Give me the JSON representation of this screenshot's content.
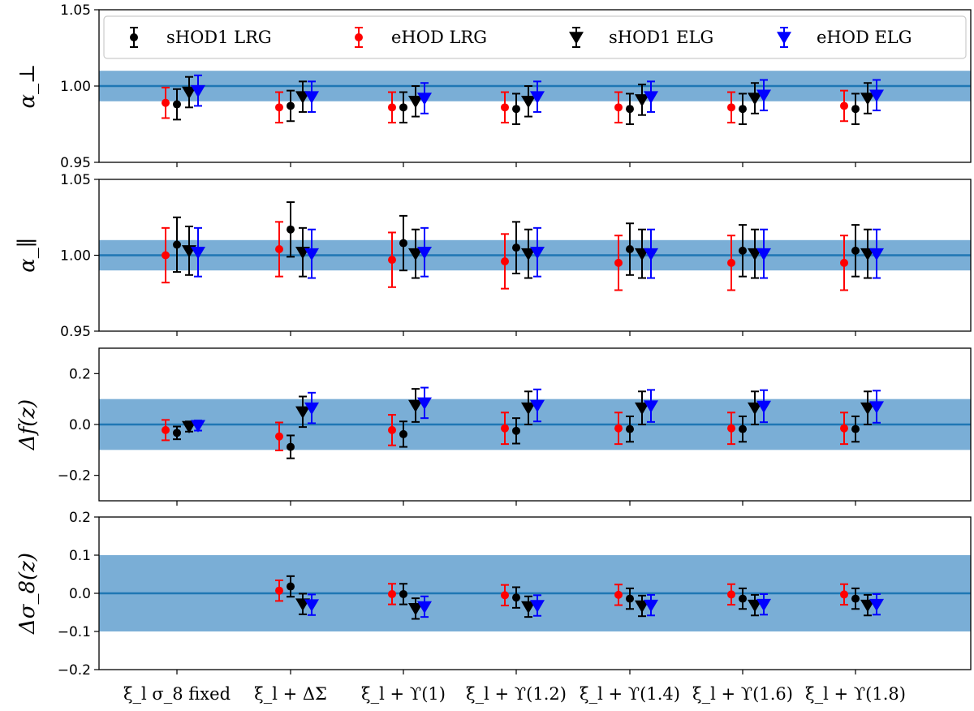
{
  "chart_data": {
    "type": "scatter",
    "categories": [
      "ξ_l  σ_8 fixed",
      "ξ_l + ΔΣ",
      "ξ_l + ϒ(1)",
      "ξ_l + ϒ(1.2)",
      "ξ_l + ϒ(1.4)",
      "ξ_l + ϒ(1.6)",
      "ξ_l + ϒ(1.8)"
    ],
    "legend": {
      "placement": "top",
      "entries": [
        {
          "label": "sHOD1 LRG",
          "color": "#000000",
          "marker": "circle"
        },
        {
          "label": "eHOD LRG",
          "color": "#ff0000",
          "marker": "circle"
        },
        {
          "label": "sHOD1 ELG",
          "color": "#000000",
          "marker": "triangle-down"
        },
        {
          "label": "eHOD ELG",
          "color": "#0000ff",
          "marker": "triangle-down"
        }
      ]
    },
    "colors": {
      "band": "#7aaed6",
      "reference_line": "#1f77b4"
    },
    "grid": false,
    "panels": [
      {
        "ylabel": "α_⊥",
        "ylim": [
          0.95,
          1.05
        ],
        "yticks": [
          "0.95",
          "1.00",
          "1.05"
        ],
        "ytick_values": [
          0.95,
          1.0,
          1.05
        ],
        "reference": 1.0,
        "band": [
          0.99,
          1.01
        ],
        "series": [
          {
            "name": "eHOD LRG",
            "values": [
              0.989,
              0.986,
              0.986,
              0.986,
              0.986,
              0.986,
              0.987
            ],
            "errors": [
              0.01,
              0.01,
              0.01,
              0.01,
              0.01,
              0.01,
              0.01
            ]
          },
          {
            "name": "sHOD1 LRG",
            "values": [
              0.988,
              0.987,
              0.986,
              0.985,
              0.985,
              0.985,
              0.985
            ],
            "errors": [
              0.01,
              0.01,
              0.01,
              0.01,
              0.01,
              0.01,
              0.01
            ]
          },
          {
            "name": "sHOD1 ELG",
            "values": [
              0.996,
              0.993,
              0.99,
              0.99,
              0.991,
              0.992,
              0.992
            ],
            "errors": [
              0.01,
              0.01,
              0.01,
              0.01,
              0.01,
              0.01,
              0.01
            ]
          },
          {
            "name": "eHOD ELG",
            "values": [
              0.997,
              0.993,
              0.992,
              0.993,
              0.993,
              0.994,
              0.994
            ],
            "errors": [
              0.01,
              0.01,
              0.01,
              0.01,
              0.01,
              0.01,
              0.01
            ]
          }
        ]
      },
      {
        "ylabel": "α_∥",
        "ylim": [
          0.95,
          1.05
        ],
        "yticks": [
          "0.95",
          "1.00",
          "1.05"
        ],
        "ytick_values": [
          0.95,
          1.0,
          1.05
        ],
        "reference": 1.0,
        "band": [
          0.99,
          1.01
        ],
        "series": [
          {
            "name": "eHOD LRG",
            "values": [
              1.0,
              1.004,
              0.997,
              0.996,
              0.995,
              0.995,
              0.995
            ],
            "errors": [
              0.018,
              0.018,
              0.018,
              0.018,
              0.018,
              0.018,
              0.018
            ]
          },
          {
            "name": "sHOD1 LRG",
            "values": [
              1.007,
              1.017,
              1.008,
              1.005,
              1.004,
              1.003,
              1.003
            ],
            "errors": [
              0.018,
              0.018,
              0.018,
              0.017,
              0.017,
              0.017,
              0.017
            ]
          },
          {
            "name": "sHOD1 ELG",
            "values": [
              1.003,
              1.002,
              1.001,
              1.001,
              1.001,
              1.001,
              1.001
            ],
            "errors": [
              0.016,
              0.016,
              0.016,
              0.016,
              0.016,
              0.016,
              0.016
            ]
          },
          {
            "name": "eHOD ELG",
            "values": [
              1.002,
              1.001,
              1.002,
              1.002,
              1.001,
              1.001,
              1.001
            ],
            "errors": [
              0.016,
              0.016,
              0.016,
              0.016,
              0.016,
              0.016,
              0.016
            ]
          }
        ]
      },
      {
        "ylabel": "Δf(z)",
        "ylim": [
          -0.3,
          0.3
        ],
        "yticks": [
          "−0.2",
          "0.0",
          "0.2"
        ],
        "ytick_values": [
          -0.2,
          0.0,
          0.2
        ],
        "reference": 0.0,
        "band": [
          -0.1,
          0.1
        ],
        "series": [
          {
            "name": "eHOD LRG",
            "values": [
              -0.022,
              -0.047,
              -0.022,
              -0.015,
              -0.015,
              -0.015,
              -0.015
            ],
            "errors": [
              0.04,
              0.055,
              0.06,
              0.062,
              0.062,
              0.062,
              0.062
            ]
          },
          {
            "name": "sHOD1 LRG",
            "values": [
              -0.033,
              -0.088,
              -0.038,
              -0.025,
              -0.018,
              -0.018,
              -0.018
            ],
            "errors": [
              0.025,
              0.045,
              0.05,
              0.05,
              0.05,
              0.05,
              0.05
            ]
          },
          {
            "name": "sHOD1 ELG",
            "values": [
              -0.008,
              0.05,
              0.075,
              0.065,
              0.065,
              0.065,
              0.065
            ],
            "errors": [
              0.02,
              0.06,
              0.065,
              0.065,
              0.065,
              0.065,
              0.065
            ]
          },
          {
            "name": "eHOD ELG",
            "values": [
              -0.004,
              0.065,
              0.085,
              0.075,
              0.073,
              0.072,
              0.07
            ],
            "errors": [
              0.02,
              0.06,
              0.06,
              0.063,
              0.063,
              0.063,
              0.063
            ]
          }
        ]
      },
      {
        "ylabel": "Δσ_8(z)",
        "ylim": [
          -0.2,
          0.2
        ],
        "yticks": [
          "−0.2",
          "−0.1",
          "0.0",
          "0.1",
          "0.2"
        ],
        "ytick_values": [
          -0.2,
          -0.1,
          0.0,
          0.1,
          0.2
        ],
        "reference": 0.0,
        "band": [
          -0.1,
          0.1
        ],
        "series": [
          {
            "name": "eHOD LRG",
            "values": [
              null,
              0.007,
              -0.002,
              -0.005,
              -0.004,
              -0.003,
              -0.003
            ],
            "errors": [
              null,
              0.027,
              0.027,
              0.027,
              0.027,
              0.027,
              0.027
            ]
          },
          {
            "name": "sHOD1 LRG",
            "values": [
              null,
              0.018,
              -0.002,
              -0.011,
              -0.014,
              -0.014,
              -0.014
            ],
            "errors": [
              null,
              0.027,
              0.027,
              0.027,
              0.027,
              0.027,
              0.027
            ]
          },
          {
            "name": "sHOD1 ELG",
            "values": [
              null,
              -0.028,
              -0.04,
              -0.035,
              -0.033,
              -0.031,
              -0.031
            ],
            "errors": [
              null,
              0.027,
              0.027,
              0.027,
              0.027,
              0.027,
              0.027
            ]
          },
          {
            "name": "eHOD ELG",
            "values": [
              null,
              -0.03,
              -0.035,
              -0.032,
              -0.031,
              -0.029,
              -0.029
            ],
            "errors": [
              null,
              0.027,
              0.027,
              0.027,
              0.027,
              0.027,
              0.027
            ]
          }
        ]
      }
    ]
  }
}
